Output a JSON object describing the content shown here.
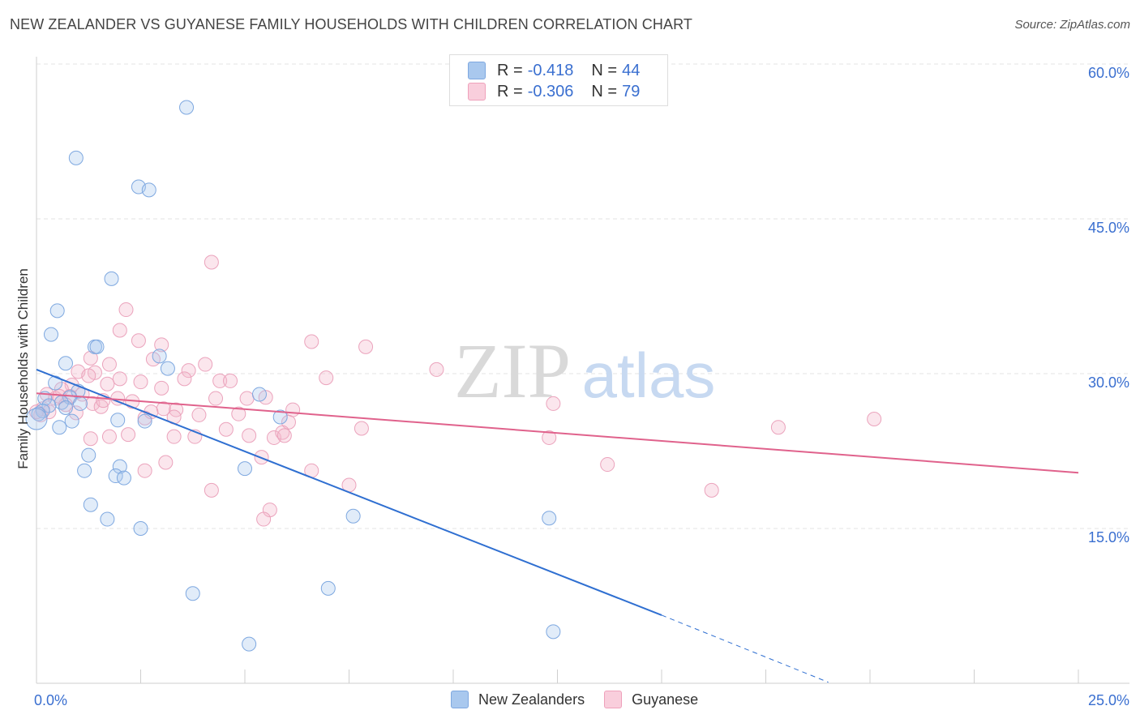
{
  "header": {
    "title": "NEW ZEALANDER VS GUYANESE FAMILY HOUSEHOLDS WITH CHILDREN CORRELATION CHART",
    "source": "Source: ZipAtlas.com"
  },
  "watermark": {
    "zip": "ZIP",
    "atlas": "atlas"
  },
  "legend": {
    "rows": [
      {
        "r_label": "R =",
        "r_value": "-0.418",
        "n_label": "N =",
        "n_value": "44"
      },
      {
        "r_label": "R =",
        "r_value": "-0.306",
        "n_label": "N =",
        "n_value": "79"
      }
    ]
  },
  "colors": {
    "new_zealanders_fill": "#a9c8ee",
    "new_zealanders_line": "#2f6fd1",
    "guyanese_fill": "#f4b8cc",
    "guyanese_line": "#e0628c",
    "axis_label": "#3a6fd0"
  },
  "chart_data": {
    "type": "scatter",
    "title": "NEW ZEALANDER VS GUYANESE FAMILY HOUSEHOLDS WITH CHILDREN CORRELATION CHART",
    "ylabel": "Family Households with Children",
    "xlabel": "",
    "xlim": [
      0,
      25
    ],
    "ylim": [
      0,
      61
    ],
    "x_tick_labels": [
      "0.0%",
      "25.0%"
    ],
    "y_ticks": [
      15,
      30,
      45,
      60
    ],
    "y_tick_labels": [
      "15.0%",
      "30.0%",
      "45.0%",
      "60.0%"
    ],
    "grid": "horizontal dashed",
    "legend_position": "top-center",
    "series": [
      {
        "name": "New Zealanders",
        "color": "#a9c8ee",
        "trend": {
          "x": [
            0,
            15
          ],
          "y": [
            30.4,
            6.6
          ],
          "dashed_to": [
            19,
            0.1
          ]
        },
        "points": [
          [
            3.6,
            55.8
          ],
          [
            0.95,
            50.9
          ],
          [
            2.45,
            48.1
          ],
          [
            2.7,
            47.8
          ],
          [
            1.8,
            39.2
          ],
          [
            0.5,
            36.1
          ],
          [
            0.35,
            33.8
          ],
          [
            1.4,
            32.6
          ],
          [
            1.45,
            32.6
          ],
          [
            2.95,
            31.7
          ],
          [
            0.7,
            31.0
          ],
          [
            3.15,
            30.5
          ],
          [
            0.45,
            29.1
          ],
          [
            1.0,
            28.3
          ],
          [
            0.8,
            27.7
          ],
          [
            0.2,
            27.6
          ],
          [
            0.6,
            27.2
          ],
          [
            0.3,
            26.9
          ],
          [
            0.15,
            26.4
          ],
          [
            0.05,
            26.1
          ],
          [
            0.7,
            26.7
          ],
          [
            1.05,
            27.1
          ],
          [
            5.35,
            28.0
          ],
          [
            5.85,
            25.8
          ],
          [
            1.95,
            25.5
          ],
          [
            2.6,
            25.4
          ],
          [
            0.85,
            25.4
          ],
          [
            0.55,
            24.8
          ],
          [
            1.25,
            22.1
          ],
          [
            2.0,
            21.0
          ],
          [
            1.15,
            20.6
          ],
          [
            5.0,
            20.8
          ],
          [
            1.9,
            20.1
          ],
          [
            2.1,
            19.9
          ],
          [
            1.3,
            17.3
          ],
          [
            1.7,
            15.9
          ],
          [
            7.6,
            16.2
          ],
          [
            12.3,
            16.0
          ],
          [
            2.5,
            15.0
          ],
          [
            3.75,
            8.7
          ],
          [
            7.0,
            9.2
          ],
          [
            5.1,
            3.8
          ],
          [
            12.4,
            5.0
          ],
          [
            0.0,
            25.6
          ]
        ]
      },
      {
        "name": "Guyanese",
        "color": "#f4b8cc",
        "trend": {
          "x": [
            0,
            25
          ],
          "y": [
            28.1,
            20.4
          ]
        },
        "points": [
          [
            4.2,
            40.8
          ],
          [
            2.15,
            36.2
          ],
          [
            2.0,
            34.2
          ],
          [
            2.45,
            33.2
          ],
          [
            3.0,
            32.8
          ],
          [
            6.6,
            33.1
          ],
          [
            7.9,
            32.6
          ],
          [
            1.3,
            31.5
          ],
          [
            2.8,
            31.4
          ],
          [
            3.65,
            30.3
          ],
          [
            4.05,
            30.9
          ],
          [
            1.75,
            30.9
          ],
          [
            9.6,
            30.4
          ],
          [
            1.0,
            30.2
          ],
          [
            1.4,
            30.1
          ],
          [
            2.0,
            29.5
          ],
          [
            3.55,
            29.5
          ],
          [
            6.95,
            29.6
          ],
          [
            2.5,
            29.2
          ],
          [
            4.4,
            29.3
          ],
          [
            4.65,
            29.3
          ],
          [
            0.85,
            28.9
          ],
          [
            1.7,
            29.0
          ],
          [
            0.6,
            28.5
          ],
          [
            3.0,
            28.6
          ],
          [
            0.25,
            28.0
          ],
          [
            1.1,
            28.0
          ],
          [
            1.95,
            27.6
          ],
          [
            0.45,
            27.6
          ],
          [
            0.8,
            27.8
          ],
          [
            4.3,
            27.6
          ],
          [
            5.05,
            27.6
          ],
          [
            5.5,
            27.7
          ],
          [
            2.3,
            27.3
          ],
          [
            1.35,
            27.1
          ],
          [
            0.7,
            27.0
          ],
          [
            0.15,
            26.6
          ],
          [
            1.55,
            26.8
          ],
          [
            3.05,
            26.6
          ],
          [
            3.35,
            26.5
          ],
          [
            6.15,
            26.5
          ],
          [
            12.4,
            27.1
          ],
          [
            0.3,
            26.3
          ],
          [
            0.1,
            26.0
          ],
          [
            0.95,
            26.2
          ],
          [
            3.9,
            26.0
          ],
          [
            4.85,
            26.1
          ],
          [
            2.6,
            25.7
          ],
          [
            3.3,
            25.8
          ],
          [
            6.05,
            25.3
          ],
          [
            4.55,
            24.6
          ],
          [
            7.8,
            24.7
          ],
          [
            2.2,
            24.1
          ],
          [
            1.75,
            23.9
          ],
          [
            1.3,
            23.7
          ],
          [
            3.3,
            23.9
          ],
          [
            3.8,
            23.9
          ],
          [
            5.1,
            24.0
          ],
          [
            5.7,
            23.8
          ],
          [
            5.9,
            24.3
          ],
          [
            5.95,
            24.0
          ],
          [
            12.3,
            23.8
          ],
          [
            17.8,
            24.8
          ],
          [
            20.1,
            25.6
          ],
          [
            5.4,
            21.9
          ],
          [
            3.1,
            21.4
          ],
          [
            2.6,
            20.6
          ],
          [
            6.6,
            20.6
          ],
          [
            13.7,
            21.2
          ],
          [
            7.5,
            19.2
          ],
          [
            4.2,
            18.7
          ],
          [
            16.2,
            18.7
          ],
          [
            5.6,
            16.8
          ],
          [
            5.45,
            15.9
          ],
          [
            1.25,
            29.8
          ],
          [
            2.75,
            26.3
          ],
          [
            0.55,
            27.8
          ],
          [
            1.6,
            27.4
          ],
          [
            0.0,
            26.3
          ]
        ]
      }
    ]
  },
  "bottom_legend": [
    "New Zealanders",
    "Guyanese"
  ]
}
